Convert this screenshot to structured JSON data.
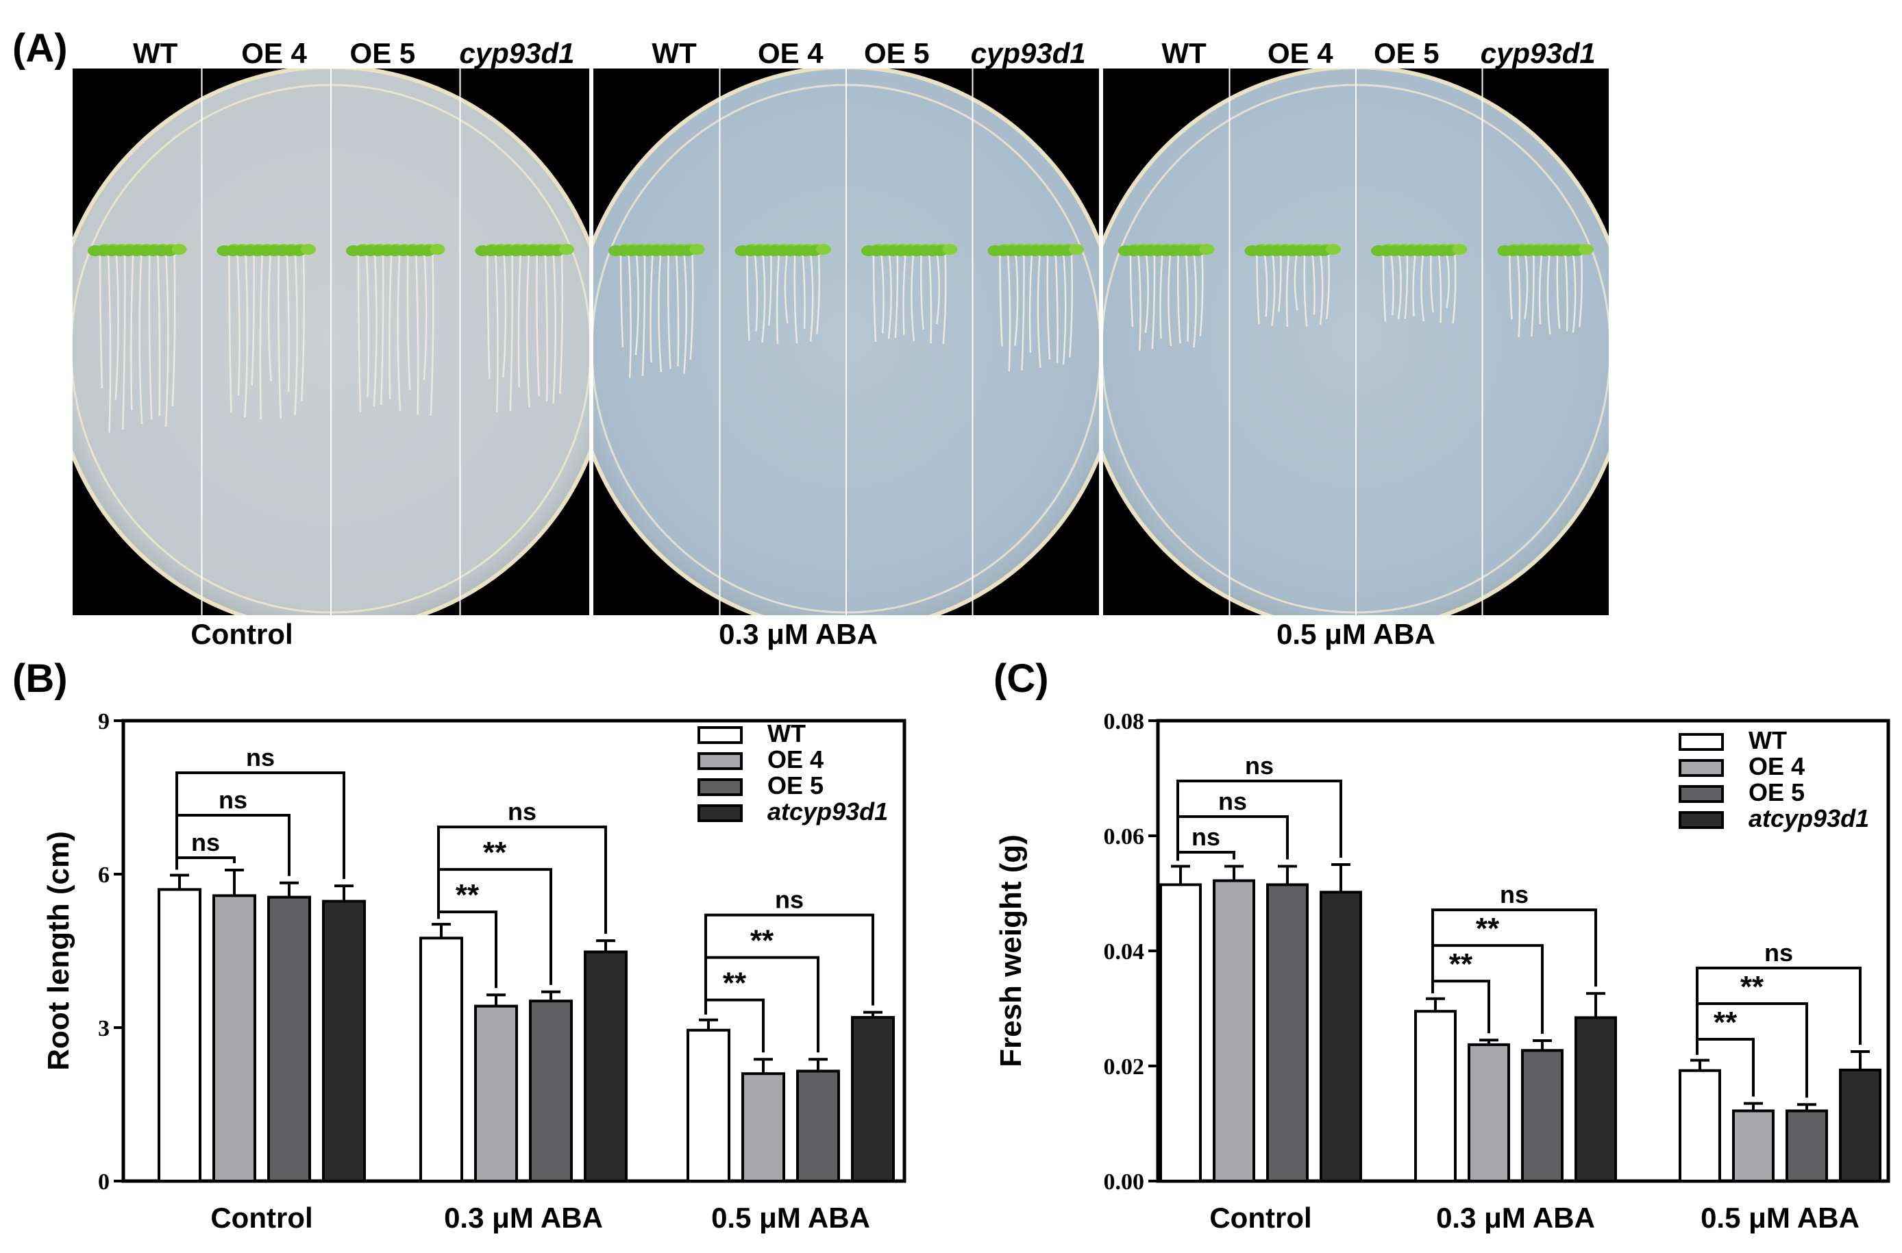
{
  "panel_a": {
    "label": "(A)",
    "columns": [
      "WT",
      "OE 4",
      "OE 5",
      "cyp93d1"
    ],
    "plates": [
      {
        "condition": "Control"
      },
      {
        "condition": "0.3 μM ABA"
      },
      {
        "condition": "0.5 μM ABA"
      }
    ],
    "colors": {
      "background": "#000000",
      "agar": "#c2c9cc",
      "agar_blue": "#a9bccb",
      "seedling": "#6fbf2a",
      "root": "#ece9e0"
    }
  },
  "chart_data": [
    {
      "panel_label": "(B)",
      "type": "bar",
      "categories": [
        "Control",
        "0.3 μM ABA",
        "0.5 μM ABA"
      ],
      "ylabel": "Root length (cm)",
      "ylim": [
        0,
        9
      ],
      "yticks": [
        "0",
        "3",
        "6",
        "9"
      ],
      "ytick_values": [
        0,
        3,
        6,
        9
      ],
      "legend_position": "top-right",
      "series": [
        {
          "name": "WT",
          "color": "#ffffff",
          "values": [
            5.7,
            4.75,
            2.95
          ],
          "errors": [
            0.28,
            0.27,
            0.2
          ]
        },
        {
          "name": "OE 4",
          "color": "#a9a9ad",
          "values": [
            5.58,
            3.42,
            2.1
          ],
          "errors": [
            0.5,
            0.22,
            0.28
          ]
        },
        {
          "name": "OE 5",
          "color": "#606062",
          "values": [
            5.55,
            3.52,
            2.15
          ],
          "errors": [
            0.28,
            0.18,
            0.23
          ]
        },
        {
          "name": "atcyp93d1",
          "color": "#2b2b2b",
          "values": [
            5.47,
            4.48,
            3.2
          ],
          "errors": [
            0.3,
            0.22,
            0.1
          ]
        }
      ],
      "annotations": [
        {
          "group": 0,
          "from": 0,
          "to": 1,
          "text": "ns",
          "level": 0
        },
        {
          "group": 0,
          "from": 0,
          "to": 2,
          "text": "ns",
          "level": 1
        },
        {
          "group": 0,
          "from": 0,
          "to": 3,
          "text": "ns",
          "level": 2
        },
        {
          "group": 1,
          "from": 0,
          "to": 1,
          "text": "**",
          "level": 0
        },
        {
          "group": 1,
          "from": 0,
          "to": 2,
          "text": "**",
          "level": 1
        },
        {
          "group": 1,
          "from": 0,
          "to": 3,
          "text": "ns",
          "level": 2
        },
        {
          "group": 2,
          "from": 0,
          "to": 1,
          "text": "**",
          "level": 0
        },
        {
          "group": 2,
          "from": 0,
          "to": 2,
          "text": "**",
          "level": 1
        },
        {
          "group": 2,
          "from": 0,
          "to": 3,
          "text": "ns",
          "level": 2
        }
      ]
    },
    {
      "panel_label": "(C)",
      "type": "bar",
      "categories": [
        "Control",
        "0.3 μM ABA",
        "0.5 μM ABA"
      ],
      "ylabel": "Fresh weight (g)",
      "ylim": [
        0,
        0.08
      ],
      "yticks": [
        "0.00",
        "0.02",
        "0.04",
        "0.06",
        "0.08"
      ],
      "ytick_values": [
        0,
        0.02,
        0.04,
        0.06,
        0.08
      ],
      "legend_position": "top-right",
      "series": [
        {
          "name": "WT",
          "color": "#ffffff",
          "values": [
            0.0515,
            0.0295,
            0.0192
          ],
          "errors": [
            0.0032,
            0.0022,
            0.0018
          ]
        },
        {
          "name": "OE 4",
          "color": "#a9a9ad",
          "values": [
            0.0522,
            0.0237,
            0.0122
          ],
          "errors": [
            0.0025,
            0.0008,
            0.0013
          ]
        },
        {
          "name": "OE 5",
          "color": "#606062",
          "values": [
            0.0515,
            0.0227,
            0.0122
          ],
          "errors": [
            0.0032,
            0.0017,
            0.0011
          ]
        },
        {
          "name": "atcyp93d1",
          "color": "#2b2b2b",
          "values": [
            0.0502,
            0.0284,
            0.0193
          ],
          "errors": [
            0.0048,
            0.0042,
            0.0032
          ]
        }
      ],
      "annotations": [
        {
          "group": 0,
          "from": 0,
          "to": 1,
          "text": "ns",
          "level": 0
        },
        {
          "group": 0,
          "from": 0,
          "to": 2,
          "text": "ns",
          "level": 1
        },
        {
          "group": 0,
          "from": 0,
          "to": 3,
          "text": "ns",
          "level": 2
        },
        {
          "group": 1,
          "from": 0,
          "to": 1,
          "text": "**",
          "level": 0
        },
        {
          "group": 1,
          "from": 0,
          "to": 2,
          "text": "**",
          "level": 1
        },
        {
          "group": 1,
          "from": 0,
          "to": 3,
          "text": "ns",
          "level": 2
        },
        {
          "group": 2,
          "from": 0,
          "to": 1,
          "text": "**",
          "level": 0
        },
        {
          "group": 2,
          "from": 0,
          "to": 2,
          "text": "**",
          "level": 1
        },
        {
          "group": 2,
          "from": 0,
          "to": 3,
          "text": "ns",
          "level": 2
        }
      ]
    }
  ]
}
